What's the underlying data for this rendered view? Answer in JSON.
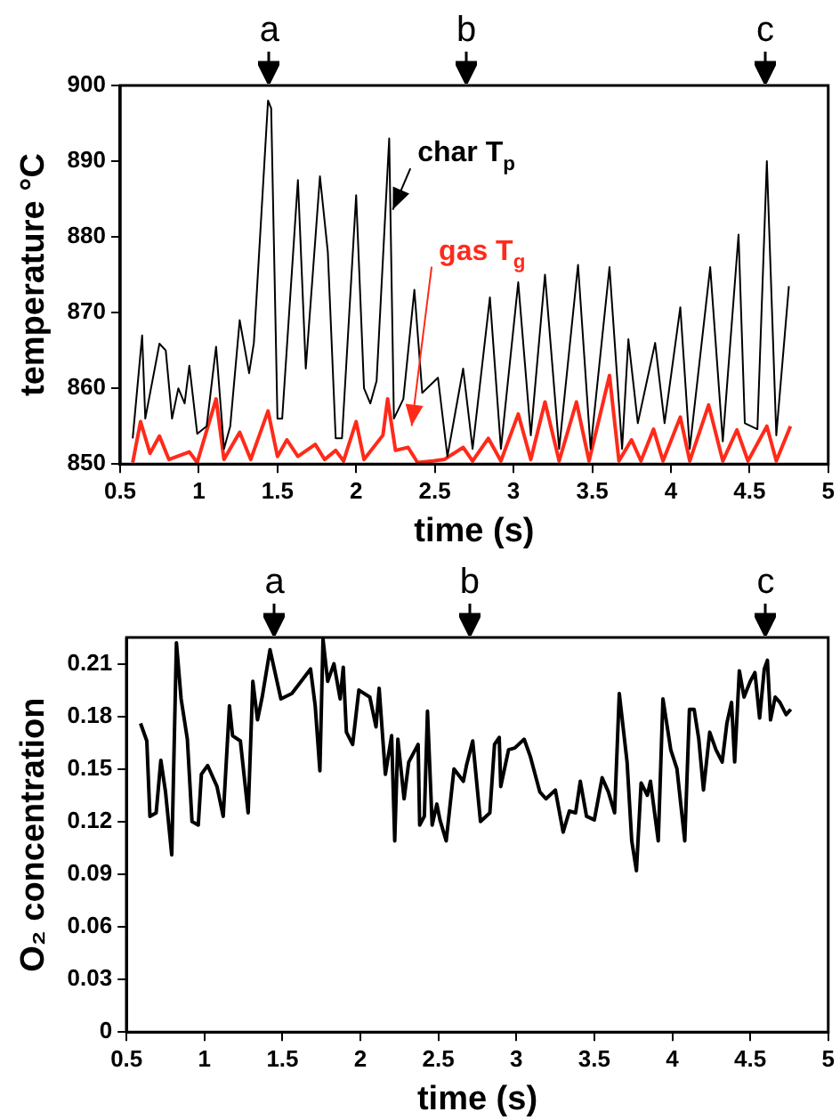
{
  "chart_data": [
    {
      "type": "line",
      "xlabel": "time (s)",
      "ylabel": "temperature °C",
      "xlim": [
        0.5,
        5
      ],
      "xticks": [
        0.5,
        1,
        1.5,
        2,
        2.5,
        3,
        3.5,
        4,
        4.5,
        5
      ],
      "ylim": [
        850,
        900
      ],
      "yticks": [
        850,
        860,
        870,
        880,
        890,
        900
      ],
      "marker": "none",
      "annotations": [
        "a",
        "b",
        "c"
      ],
      "series": [
        {
          "name": "char T$_{p}$",
          "color": "#000000",
          "x": [
            0.58,
            0.64,
            0.66,
            0.75,
            0.79,
            0.83,
            0.87,
            0.91,
            0.94,
            0.99,
            1.05,
            1.11,
            1.16,
            1.2,
            1.26,
            1.32,
            1.35,
            1.44,
            1.46,
            1.5,
            1.53,
            1.63,
            1.68,
            1.77,
            1.82,
            1.87,
            1.91,
            2.0,
            2.05,
            2.09,
            2.13,
            2.21,
            2.24,
            2.3,
            2.37,
            2.42,
            2.52,
            2.58,
            2.68,
            2.74,
            2.85,
            2.92,
            3.03,
            3.11,
            3.2,
            3.29,
            3.41,
            3.49,
            3.61,
            3.69,
            3.73,
            3.79,
            3.9,
            3.96,
            4.06,
            4.12,
            4.25,
            4.33,
            4.43,
            4.47,
            4.55,
            4.61,
            4.67,
            4.75
          ],
          "values": [
            853.4,
            867,
            856,
            865.9,
            865,
            856,
            860,
            858,
            863,
            854,
            855,
            865.5,
            852,
            855,
            869,
            862,
            866,
            898,
            897,
            856,
            856,
            887.5,
            862.6,
            888,
            878,
            853.4,
            853.4,
            885.5,
            860,
            858,
            861,
            893,
            856,
            858.6,
            873,
            859.4,
            861.4,
            851,
            862.6,
            852,
            872,
            852,
            874,
            853.8,
            875,
            852,
            876.3,
            852,
            876,
            852,
            866.5,
            855.4,
            866,
            855.4,
            870.7,
            852,
            876,
            853,
            880.3,
            855.4,
            854.6,
            890,
            853.8,
            873.5
          ]
        },
        {
          "name": "gas T$_{g}$",
          "color": "#ff2a1a",
          "x": [
            0.58,
            0.63,
            0.69,
            0.75,
            0.81,
            0.94,
            0.99,
            1.11,
            1.16,
            1.26,
            1.33,
            1.44,
            1.5,
            1.56,
            1.63,
            1.74,
            1.8,
            1.87,
            1.92,
            2.0,
            2.05,
            2.17,
            2.2,
            2.25,
            2.33,
            2.39,
            2.49,
            2.56,
            2.68,
            2.74,
            2.84,
            2.92,
            3.03,
            3.11,
            3.2,
            3.29,
            3.4,
            3.48,
            3.61,
            3.67,
            3.75,
            3.81,
            3.89,
            3.95,
            4.06,
            4.12,
            4.24,
            4.33,
            4.42,
            4.49,
            4.61,
            4.67,
            4.76
          ],
          "values": [
            850.2,
            855.6,
            851.4,
            853.7,
            850.6,
            851.6,
            850.2,
            858.6,
            850.6,
            854.2,
            850.6,
            857,
            851,
            853.2,
            851,
            852.6,
            850.6,
            851.8,
            850.4,
            855.6,
            850.6,
            853.8,
            858.6,
            851.8,
            852.2,
            850.2,
            850.4,
            850.6,
            852.2,
            850.4,
            853.4,
            850.4,
            856.6,
            850.6,
            858.2,
            850.4,
            858.2,
            850.4,
            861.7,
            850.4,
            853.2,
            850.4,
            854.6,
            850.4,
            856.2,
            850.4,
            857.8,
            850.4,
            854.5,
            850.4,
            855,
            850.4,
            855
          ]
        }
      ]
    },
    {
      "type": "line",
      "xlabel": "time (s)",
      "ylabel": "O₂ concentration",
      "xlim": [
        0.5,
        5
      ],
      "xticks": [
        0.5,
        1,
        1.5,
        2,
        2.5,
        3,
        3.5,
        4,
        4.5,
        5
      ],
      "ylim": [
        0,
        0.225
      ],
      "yticks": [
        0,
        0.03,
        0.06,
        0.09,
        0.12,
        0.15,
        0.18,
        0.21
      ],
      "marker": "none",
      "annotations": [
        "a",
        "b",
        "c"
      ],
      "series": [
        {
          "color": "#000000",
          "x": [
            0.59,
            0.63,
            0.65,
            0.69,
            0.72,
            0.75,
            0.79,
            0.82,
            0.85,
            0.89,
            0.92,
            0.96,
            0.98,
            1.02,
            1.08,
            1.12,
            1.16,
            1.18,
            1.23,
            1.28,
            1.31,
            1.34,
            1.37,
            1.42,
            1.49,
            1.56,
            1.62,
            1.68,
            1.71,
            1.74,
            1.76,
            1.79,
            1.83,
            1.87,
            1.89,
            1.91,
            1.95,
            1.99,
            2.06,
            2.1,
            2.12,
            2.16,
            2.2,
            2.22,
            2.24,
            2.28,
            2.31,
            2.37,
            2.38,
            2.41,
            2.43,
            2.46,
            2.49,
            2.51,
            2.55,
            2.6,
            2.66,
            2.68,
            2.72,
            2.77,
            2.83,
            2.86,
            2.89,
            2.9,
            2.95,
            2.99,
            3.05,
            3.09,
            3.15,
            3.19,
            3.25,
            3.3,
            3.34,
            3.38,
            3.41,
            3.45,
            3.5,
            3.55,
            3.59,
            3.63,
            3.66,
            3.71,
            3.74,
            3.77,
            3.8,
            3.84,
            3.86,
            3.91,
            3.94,
            3.99,
            4.03,
            4.08,
            4.11,
            4.14,
            4.17,
            4.2,
            4.24,
            4.28,
            4.32,
            4.35,
            4.38,
            4.4,
            4.43,
            4.46,
            4.5,
            4.53,
            4.56,
            4.59,
            4.61,
            4.63,
            4.66,
            4.69,
            4.73,
            4.76
          ],
          "values": [
            0.176,
            0.166,
            0.123,
            0.125,
            0.155,
            0.137,
            0.101,
            0.222,
            0.19,
            0.167,
            0.12,
            0.118,
            0.147,
            0.152,
            0.14,
            0.123,
            0.186,
            0.169,
            0.166,
            0.125,
            0.2,
            0.178,
            0.191,
            0.218,
            0.19,
            0.193,
            0.2,
            0.207,
            0.186,
            0.149,
            0.224,
            0.2,
            0.21,
            0.19,
            0.208,
            0.171,
            0.164,
            0.195,
            0.191,
            0.174,
            0.196,
            0.147,
            0.169,
            0.109,
            0.167,
            0.133,
            0.154,
            0.164,
            0.118,
            0.123,
            0.183,
            0.118,
            0.13,
            0.121,
            0.109,
            0.15,
            0.143,
            0.152,
            0.166,
            0.12,
            0.125,
            0.164,
            0.168,
            0.14,
            0.161,
            0.162,
            0.167,
            0.157,
            0.137,
            0.133,
            0.138,
            0.114,
            0.126,
            0.125,
            0.143,
            0.123,
            0.121,
            0.145,
            0.137,
            0.125,
            0.193,
            0.154,
            0.109,
            0.092,
            0.142,
            0.135,
            0.143,
            0.109,
            0.19,
            0.161,
            0.15,
            0.109,
            0.184,
            0.184,
            0.167,
            0.138,
            0.171,
            0.161,
            0.154,
            0.176,
            0.188,
            0.154,
            0.206,
            0.191,
            0.2,
            0.205,
            0.179,
            0.207,
            0.212,
            0.178,
            0.191,
            0.188,
            0.181,
            0.184
          ]
        }
      ]
    }
  ]
}
